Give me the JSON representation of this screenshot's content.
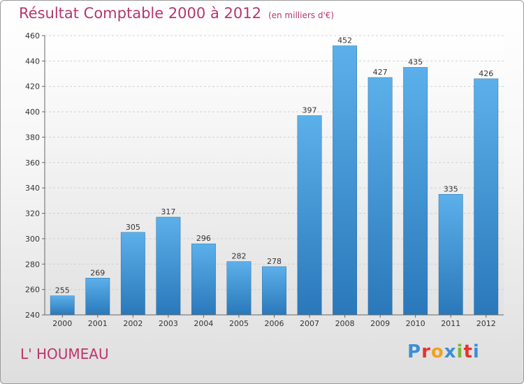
{
  "chart_data": {
    "type": "bar",
    "title": "Résultat Comptable 2000 à 2012",
    "subtitle": "(en milliers d'€)",
    "categories": [
      "2000",
      "2001",
      "2002",
      "2003",
      "2004",
      "2005",
      "2006",
      "2007",
      "2008",
      "2009",
      "2010",
      "2011",
      "2012"
    ],
    "values": [
      255,
      269,
      305,
      317,
      296,
      282,
      278,
      397,
      452,
      427,
      435,
      335,
      426
    ],
    "ylim": [
      240,
      460
    ],
    "yticks": [
      240,
      260,
      280,
      300,
      320,
      340,
      360,
      380,
      400,
      420,
      440,
      460
    ],
    "grid": true,
    "xlabel": "",
    "ylabel": ""
  },
  "footer": {
    "place": "L' HOUMEAU",
    "logo": {
      "letters": [
        "P",
        "r",
        "o",
        "x",
        "i",
        "t",
        "i"
      ],
      "colors": [
        "#3a8fd6",
        "#e8332a",
        "#f2a31b",
        "#3a8fd6",
        "#7bb63a",
        "#e8332a",
        "#3a8fd6"
      ]
    }
  },
  "colors": {
    "bar_top": "#5cb0ea",
    "bar_bottom": "#2a78ba",
    "title": "#b5366f",
    "place": "#c0346a"
  }
}
